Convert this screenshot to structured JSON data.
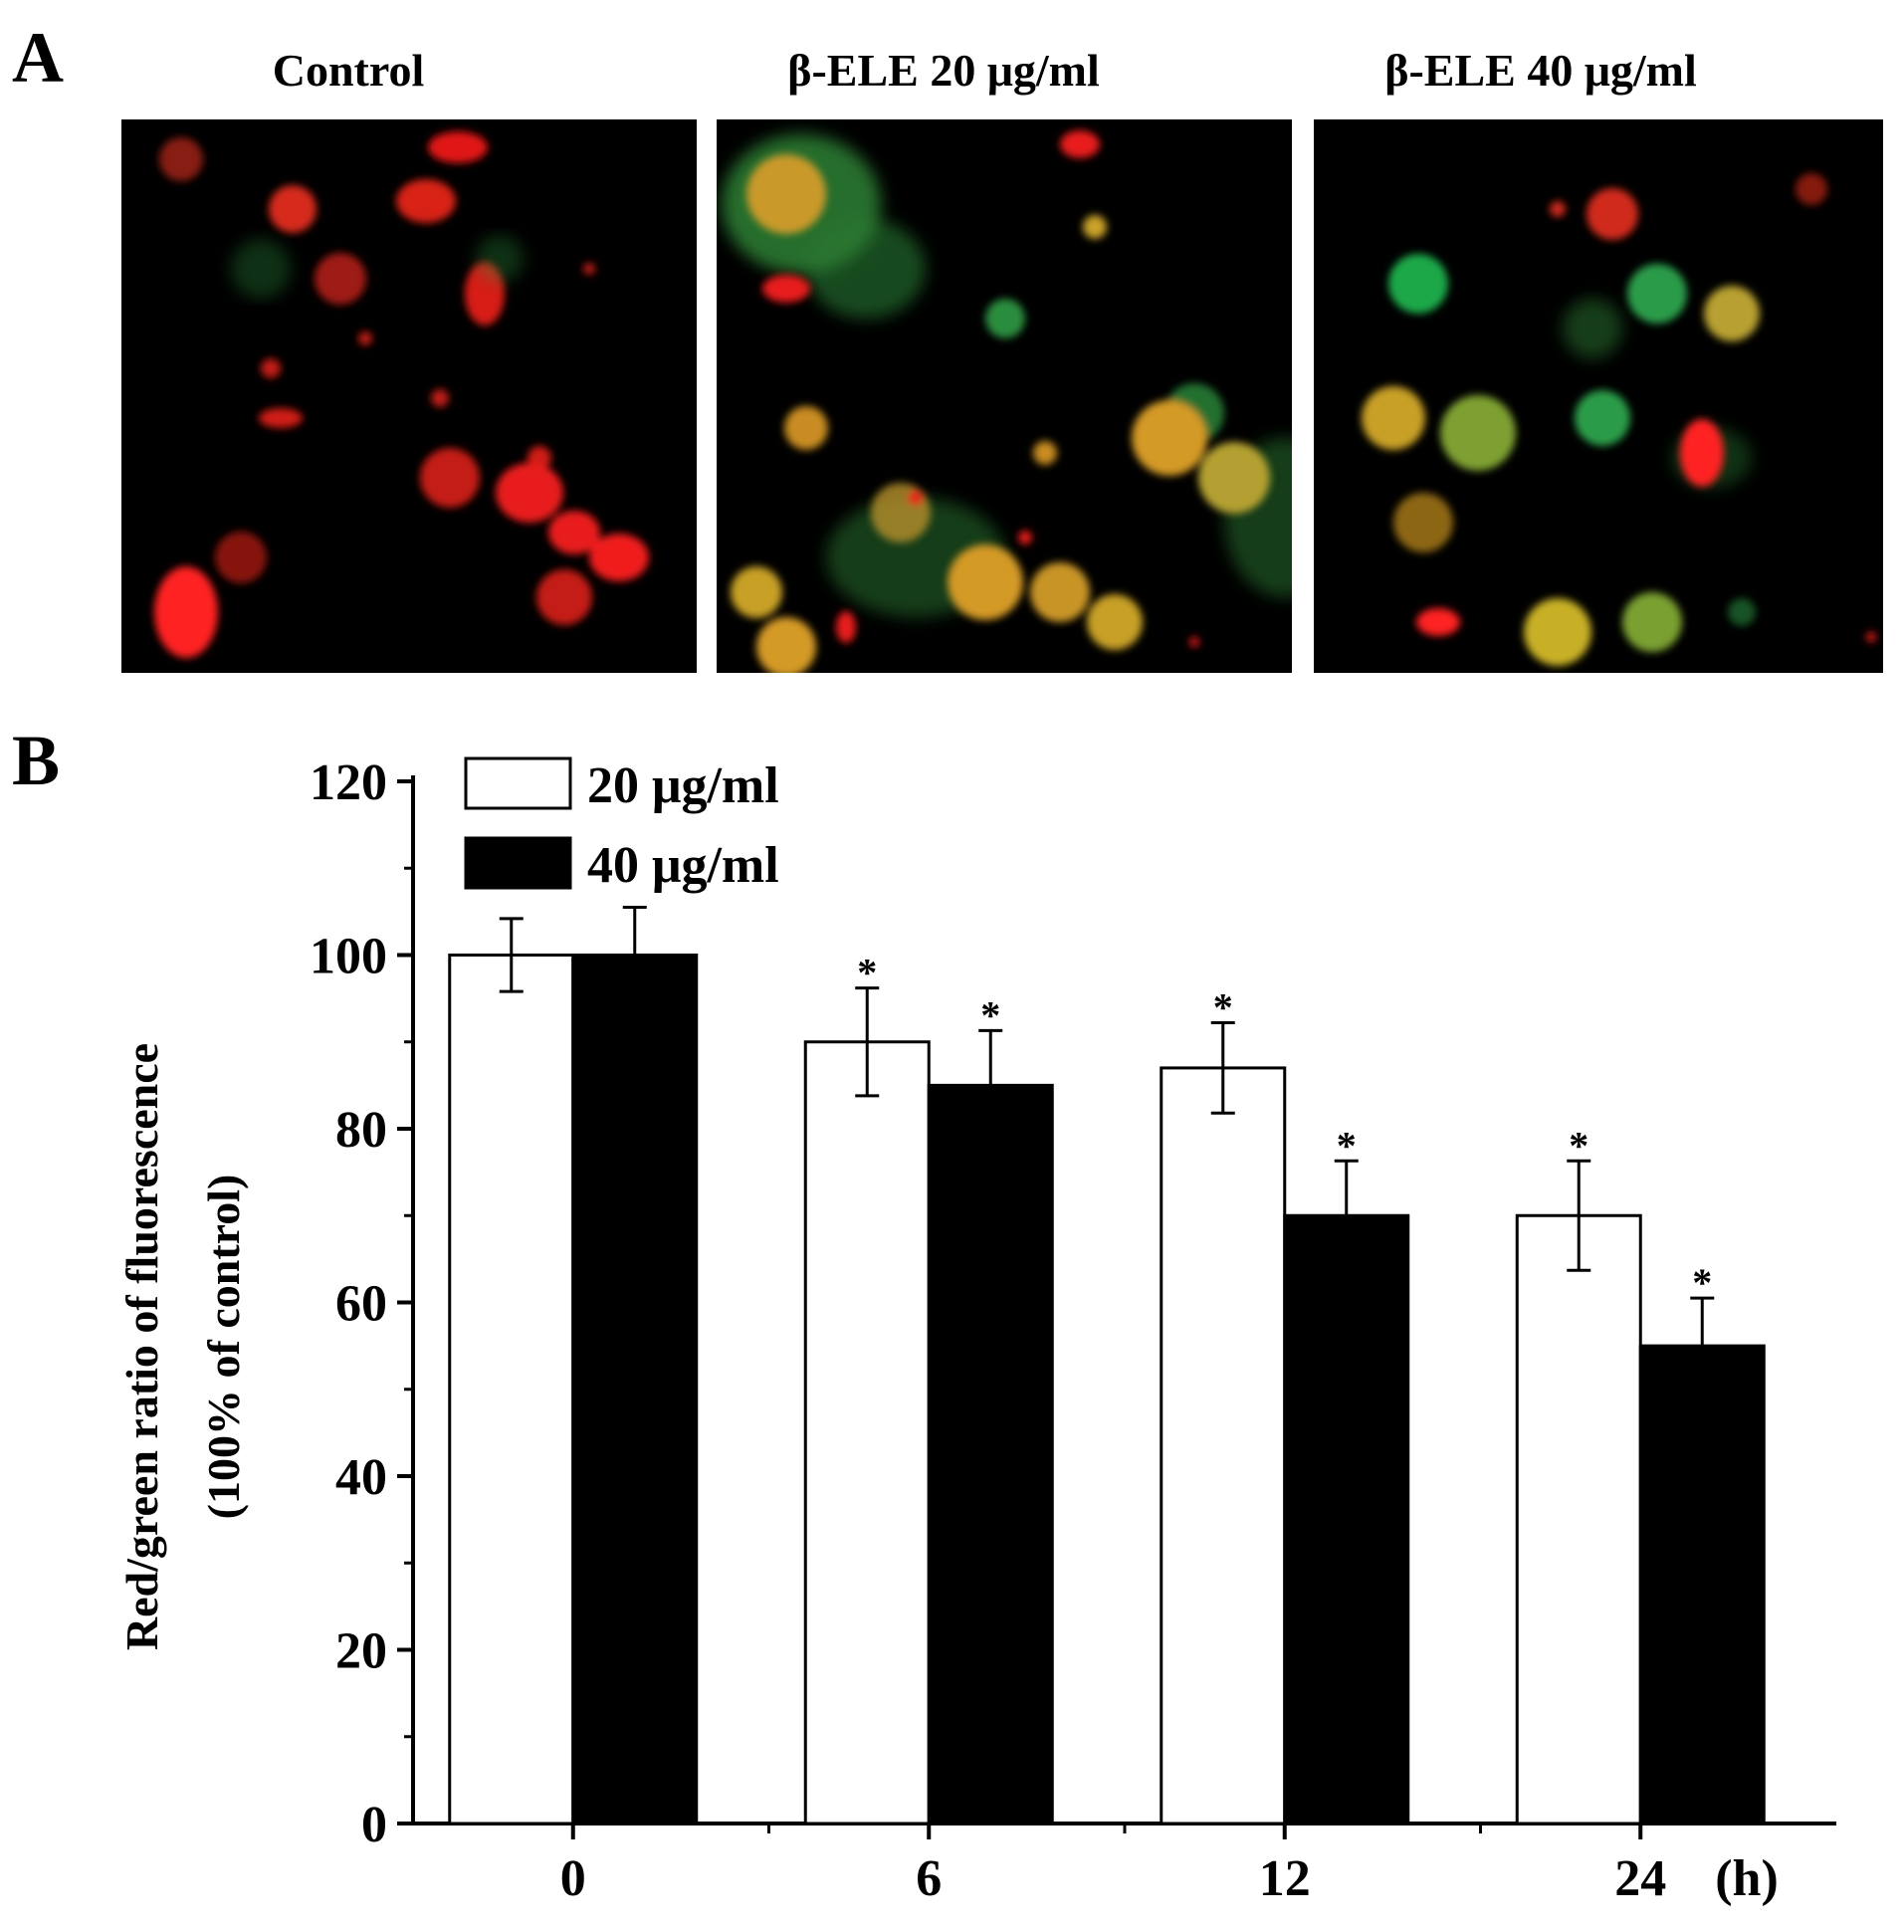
{
  "panel_a": {
    "letter": "A",
    "titles": [
      "Control",
      "β-ELE  20 μg/ml",
      "β-ELE  40 μg/ml"
    ]
  },
  "panel_b": {
    "letter": "B"
  },
  "chart_data": {
    "type": "bar",
    "categories": [
      "0",
      "6",
      "12",
      "24"
    ],
    "x_unit": "(h)",
    "xlabel": "",
    "ylabel": [
      "Red/green ratio of fluorescence",
      "(100% of control)"
    ],
    "ylim": [
      0,
      120
    ],
    "yticks": [
      0,
      20,
      40,
      60,
      80,
      100,
      120
    ],
    "grid": false,
    "legend_position": "top-left",
    "series": [
      {
        "name": "20 μg/ml",
        "fill": "#ffffff",
        "values": [
          100,
          90,
          87,
          70
        ],
        "errors": [
          4.2,
          6.2,
          5.2,
          6.3
        ],
        "significant": [
          false,
          true,
          true,
          true
        ]
      },
      {
        "name": "40 μg/ml",
        "fill": "#000000",
        "values": [
          100,
          85,
          70,
          55
        ],
        "errors": [
          5.5,
          6.3,
          6.3,
          5.5
        ],
        "significant": [
          false,
          true,
          true,
          true
        ]
      }
    ],
    "significance_marker": "*"
  }
}
